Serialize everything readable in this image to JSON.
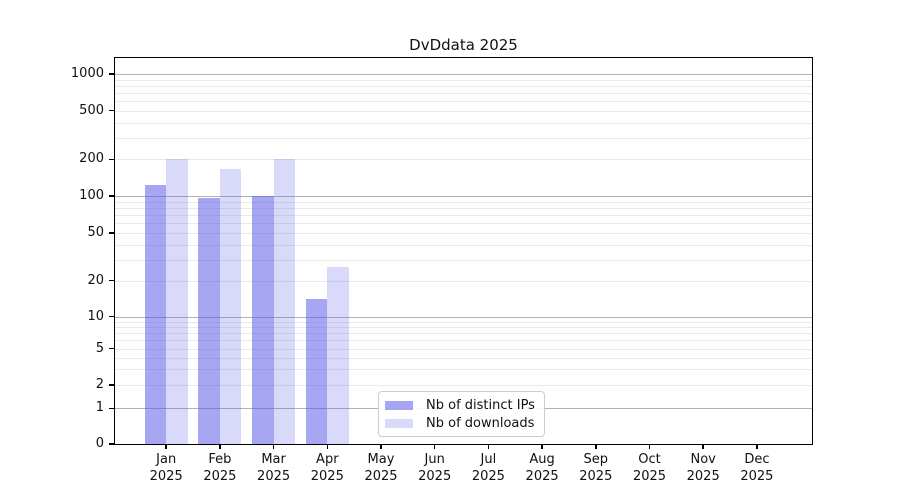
{
  "title": "DvDdata 2025",
  "colors": {
    "bar_base": "#5050e6",
    "ips_fill": "rgba(80,80,230,0.51)",
    "downloads_fill": "rgba(80,80,230,0.22)",
    "grid_major": "#b2b2b2",
    "grid_minor": "#e9e9e9",
    "spine": "#000000",
    "text": "#111111",
    "legend_border": "#cccccc"
  },
  "chart_data": {
    "type": "bar",
    "title": "DvDdata 2025",
    "categories": [
      "Jan",
      "Feb",
      "Mar",
      "Apr",
      "May",
      "Jun",
      "Jul",
      "Aug",
      "Sep",
      "Oct",
      "Nov",
      "Dec"
    ],
    "x_year_label": "2025",
    "series": [
      {
        "name": "Nb of distinct IPs",
        "values": [
          123,
          96,
          100,
          14,
          0,
          0,
          0,
          0,
          0,
          0,
          0,
          0
        ]
      },
      {
        "name": "Nb of downloads",
        "values": [
          200,
          166,
          200,
          26,
          0,
          0,
          0,
          0,
          0,
          0,
          0,
          0
        ]
      }
    ],
    "xlabel": "",
    "ylabel": "",
    "yscale": "symlog",
    "y_ticks": [
      0,
      1,
      2,
      5,
      10,
      20,
      50,
      100,
      200,
      500,
      1000
    ],
    "y_major_gridlines": [
      1,
      10,
      100,
      1000
    ],
    "y_minor_gridlines": [
      2,
      3,
      4,
      5,
      6,
      7,
      8,
      9,
      20,
      30,
      40,
      50,
      60,
      70,
      80,
      90,
      200,
      300,
      400,
      500,
      600,
      700,
      800,
      900
    ],
    "ylim": [
      0,
      1500
    ],
    "grid": true,
    "legend_position": "lower-center"
  }
}
